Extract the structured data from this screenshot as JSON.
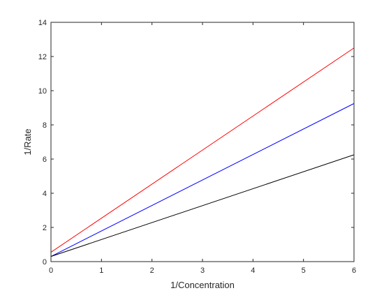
{
  "chart_data": {
    "type": "line",
    "xlabel": "1/Concentration",
    "ylabel": "1/Rate",
    "xlim": [
      0,
      6
    ],
    "ylim": [
      0,
      14
    ],
    "xticks": [
      0,
      1,
      2,
      3,
      4,
      5,
      6
    ],
    "yticks": [
      0,
      2,
      4,
      6,
      8,
      10,
      12,
      14
    ],
    "grid": false,
    "series": [
      {
        "color": "#ff0000",
        "x": [
          0,
          6
        ],
        "y": [
          0.55,
          12.5
        ]
      },
      {
        "color": "#0000ff",
        "x": [
          0,
          6
        ],
        "y": [
          0.3,
          9.25
        ]
      },
      {
        "color": "#000000",
        "x": [
          0,
          6
        ],
        "y": [
          0.3,
          6.25
        ]
      }
    ]
  }
}
